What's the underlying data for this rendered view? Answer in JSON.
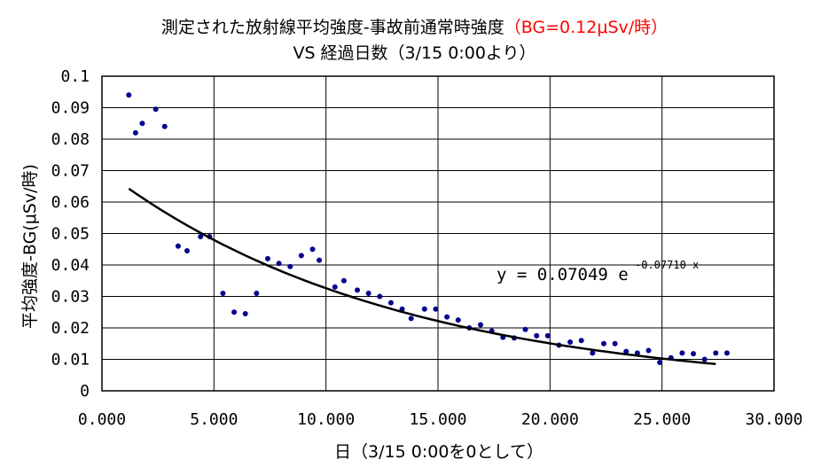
{
  "chart_data": {
    "type": "scatter",
    "title_main": "測定された放射線平均強度-事故前通常時強度",
    "title_bg": "（BG=0.12μSv/時）",
    "subtitle": "VS 経過日数（3/15 0:00より）",
    "xlabel": "日（3/15 0:00を0として）",
    "ylabel": "平均強度-BG(μSv/時)",
    "xlim": [
      0,
      30
    ],
    "ylim": [
      0,
      0.1
    ],
    "x_ticks": [
      "0.000",
      "5.000",
      "10.000",
      "15.000",
      "20.000",
      "25.000",
      "30.000"
    ],
    "y_ticks": [
      "0",
      "0.01",
      "0.02",
      "0.03",
      "0.04",
      "0.05",
      "0.06",
      "0.07",
      "0.08",
      "0.09",
      "0.1"
    ],
    "grid": true,
    "marker_color": "#00008b",
    "trendline": {
      "type": "exponential",
      "a": 0.07049,
      "b": -0.0771,
      "x_range": [
        1.2,
        27.4
      ],
      "equation_text": "y = 0.07049 e",
      "exponent_text": "-0.07710 x"
    },
    "points": [
      [
        1.2,
        0.094
      ],
      [
        1.5,
        0.082
      ],
      [
        1.8,
        0.085
      ],
      [
        2.4,
        0.0895
      ],
      [
        2.8,
        0.084
      ],
      [
        3.4,
        0.046
      ],
      [
        3.8,
        0.0445
      ],
      [
        4.4,
        0.049
      ],
      [
        4.8,
        0.049
      ],
      [
        5.4,
        0.031
      ],
      [
        5.9,
        0.025
      ],
      [
        6.4,
        0.0245
      ],
      [
        6.9,
        0.031
      ],
      [
        7.4,
        0.042
      ],
      [
        7.9,
        0.0405
      ],
      [
        8.4,
        0.0395
      ],
      [
        8.9,
        0.043
      ],
      [
        9.4,
        0.045
      ],
      [
        9.7,
        0.0415
      ],
      [
        10.4,
        0.033
      ],
      [
        10.8,
        0.035
      ],
      [
        11.4,
        0.032
      ],
      [
        11.9,
        0.031
      ],
      [
        12.4,
        0.03
      ],
      [
        12.9,
        0.028
      ],
      [
        13.4,
        0.026
      ],
      [
        13.8,
        0.023
      ],
      [
        14.4,
        0.026
      ],
      [
        14.9,
        0.026
      ],
      [
        15.4,
        0.0235
      ],
      [
        15.9,
        0.0225
      ],
      [
        16.4,
        0.02
      ],
      [
        16.9,
        0.021
      ],
      [
        17.4,
        0.019
      ],
      [
        17.9,
        0.017
      ],
      [
        18.4,
        0.0168
      ],
      [
        18.9,
        0.0195
      ],
      [
        19.4,
        0.0175
      ],
      [
        19.9,
        0.0175
      ],
      [
        20.4,
        0.0145
      ],
      [
        20.9,
        0.0155
      ],
      [
        21.4,
        0.016
      ],
      [
        21.9,
        0.012
      ],
      [
        22.4,
        0.015
      ],
      [
        22.9,
        0.015
      ],
      [
        23.4,
        0.0125
      ],
      [
        23.9,
        0.012
      ],
      [
        24.4,
        0.0128
      ],
      [
        24.9,
        0.009
      ],
      [
        25.4,
        0.0105
      ],
      [
        25.9,
        0.012
      ],
      [
        26.4,
        0.0118
      ],
      [
        26.9,
        0.01
      ],
      [
        27.4,
        0.012
      ],
      [
        27.9,
        0.012
      ]
    ]
  }
}
